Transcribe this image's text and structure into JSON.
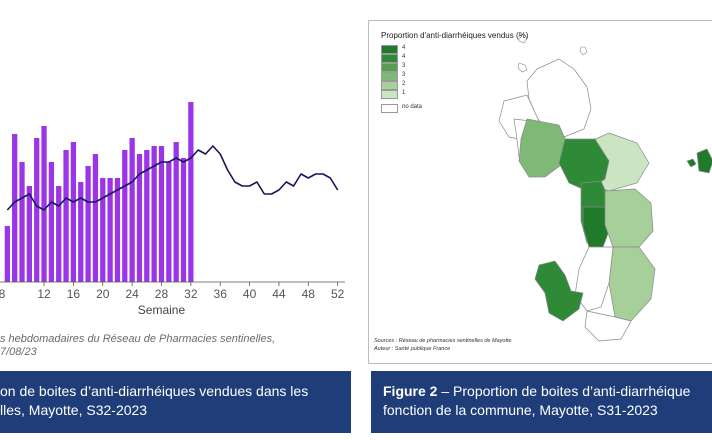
{
  "chart_data": {
    "type": "bar",
    "x": [
      7,
      8,
      9,
      10,
      11,
      12,
      13,
      14,
      15,
      16,
      17,
      18,
      19,
      20,
      21,
      22,
      23,
      24,
      25,
      26,
      27,
      28,
      29,
      30,
      31,
      32
    ],
    "values": [
      1.4,
      3.7,
      3.0,
      2.4,
      3.6,
      3.9,
      3.0,
      2.4,
      3.3,
      3.5,
      2.5,
      2.9,
      3.2,
      2.6,
      2.6,
      2.6,
      3.3,
      3.6,
      3.2,
      3.3,
      3.4,
      3.4,
      3.0,
      3.5,
      3.1,
      4.5
    ],
    "line": {
      "x": [
        7,
        8,
        9,
        10,
        11,
        12,
        13,
        14,
        15,
        16,
        17,
        18,
        19,
        20,
        21,
        22,
        23,
        24,
        25,
        26,
        27,
        28,
        29,
        30,
        31,
        32,
        33,
        34,
        35,
        36,
        37,
        38,
        39,
        40,
        41,
        42,
        43,
        44,
        45,
        46,
        47,
        48,
        49,
        50,
        51,
        52
      ],
      "y": [
        1.8,
        2.0,
        2.1,
        2.2,
        1.9,
        1.8,
        2.0,
        1.9,
        2.1,
        2.0,
        2.1,
        2.0,
        2.0,
        2.1,
        2.2,
        2.3,
        2.4,
        2.5,
        2.7,
        2.8,
        2.9,
        3.0,
        3.0,
        3.1,
        3.0,
        3.1,
        3.3,
        3.2,
        3.4,
        3.2,
        2.8,
        2.5,
        2.4,
        2.4,
        2.5,
        2.2,
        2.2,
        2.3,
        2.5,
        2.4,
        2.7,
        2.6,
        2.7,
        2.7,
        2.6,
        2.3
      ]
    },
    "xlabel": "Semaine",
    "xticks": [
      12,
      16,
      20,
      24,
      28,
      32,
      36,
      40,
      44,
      48,
      52
    ],
    "xlim": [
      6,
      53
    ],
    "ylim": [
      0,
      5
    ],
    "grid": false,
    "colors": {
      "bars": "#9a36e8",
      "line": "#17175a"
    }
  },
  "figure1": {
    "source_line1": "s hebdomadaires du Réseau de Pharmacies sentinelles,",
    "source_line2": "7/08/23",
    "caption_line1": "on de boites d’anti-diarrhéiques vendues dans les",
    "caption_line2": "lles, Mayotte, S32-2023"
  },
  "figure2": {
    "caption_prefix": "Figure 2",
    "caption_line1_rest": " –  Proportion de boites d’anti-diarrhéique",
    "caption_line2": "fonction de la commune, Mayotte, S31-2023",
    "map_title": "Proportion d'anti-diarrhéiques vendus (%)",
    "legend": [
      {
        "label": "4",
        "color": "#1f7a2a"
      },
      {
        "label": "4",
        "color": "#2f8a38"
      },
      {
        "label": "3",
        "color": "#559f4e"
      },
      {
        "label": "3",
        "color": "#7fb877"
      },
      {
        "label": "2",
        "color": "#a6cf9a"
      },
      {
        "label": "1",
        "color": "#cbe4c2"
      },
      {
        "label": "no data",
        "color": "#ffffff"
      }
    ],
    "map_source_line1": "Sources : Réseau de pharmacies sentinelles de Mayotte",
    "map_source_line2": "Auteur : Santé publique France"
  },
  "colors": {
    "caption_bg": "#1f3d78",
    "caption_text": "#ffffff"
  }
}
